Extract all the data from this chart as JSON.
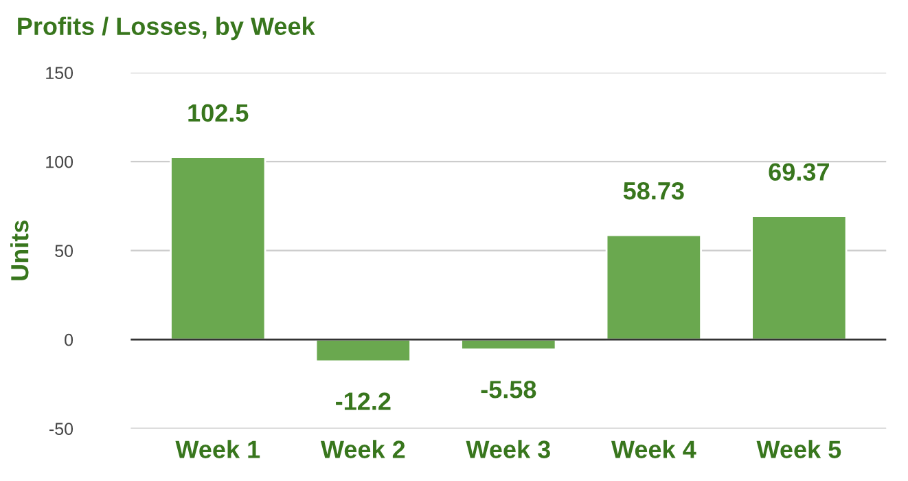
{
  "chart_data": {
    "type": "bar",
    "title": "Profits / Losses, by Week",
    "ylabel": "Units",
    "categories": [
      "Week 1",
      "Week 2",
      "Week 3",
      "Week 4",
      "Week 5"
    ],
    "values": [
      102.5,
      -12.2,
      -5.58,
      58.73,
      69.37
    ],
    "color": "#6aa84f",
    "ylim": [
      -50,
      150
    ],
    "yticks": [
      -50,
      0,
      50,
      100,
      150
    ],
    "grid": "y",
    "data_labels": true,
    "legend": false
  }
}
